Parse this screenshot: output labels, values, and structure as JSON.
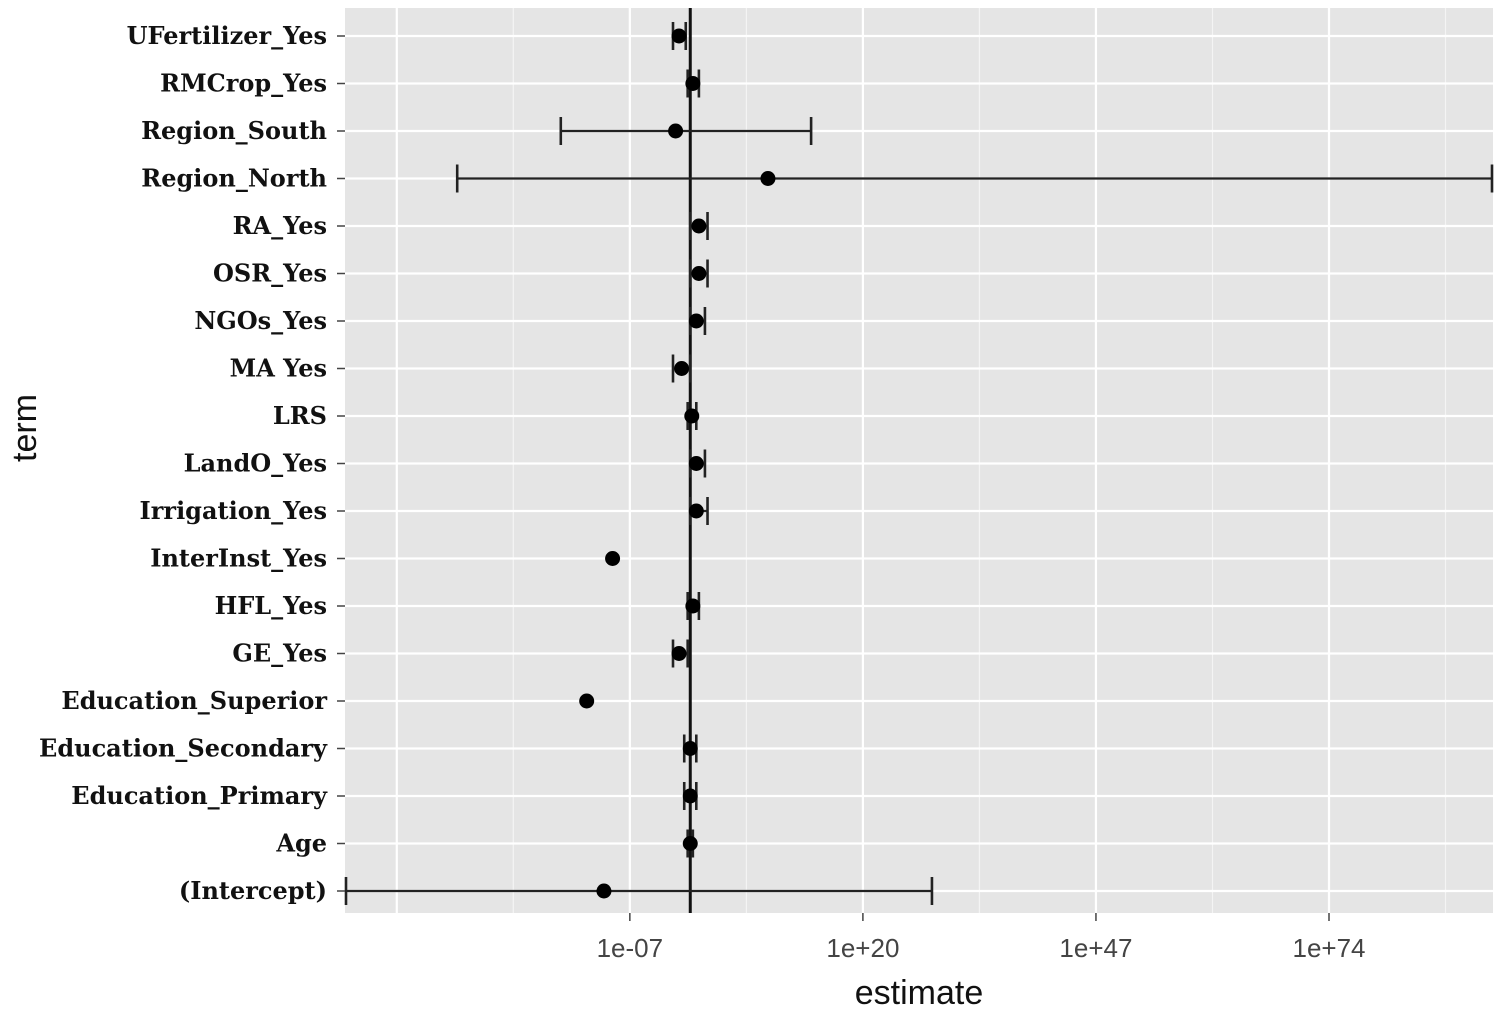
{
  "chart_data": {
    "type": "scatter",
    "subtype": "coefficient-plot-with-error-bars",
    "xlabel": "estimate",
    "ylabel": "term",
    "x_scale": "log10",
    "xlim": [
      1e-40,
      1e+93
    ],
    "x_ticks": [
      {
        "label": "1e-07",
        "value": 1e-07
      },
      {
        "label": "1e+20",
        "value": 1e+20
      },
      {
        "label": "1e+47",
        "value": 1e+47
      },
      {
        "label": "1e+74",
        "value": 1e+74
      }
    ],
    "reference_line_x": 1,
    "grid": true,
    "terms": [
      {
        "name": "UFertilizer_Yes",
        "estimate": 0.05,
        "low": 0.01,
        "high": 0.3
      },
      {
        "name": "RMCrop_Yes",
        "estimate": 2,
        "low": 0.5,
        "high": 10
      },
      {
        "name": "Region_South",
        "estimate": 0.02,
        "low": 1e-15,
        "high": 100000000000000.0
      },
      {
        "name": "Region_North",
        "estimate": 1000000000.0,
        "low": 1e-27,
        "high": 1e+93
      },
      {
        "name": "RA_Yes",
        "estimate": 10,
        "low": 1,
        "high": 100
      },
      {
        "name": "OSR_Yes",
        "estimate": 10,
        "low": 1,
        "high": 100
      },
      {
        "name": "NGOs_Yes",
        "estimate": 5,
        "low": 1,
        "high": 50
      },
      {
        "name": "MA  Yes",
        "estimate": 0.1,
        "low": 0.01,
        "high": 1
      },
      {
        "name": "LRS",
        "estimate": 1.5,
        "low": 0.5,
        "high": 5
      },
      {
        "name": "LandO_Yes",
        "estimate": 5,
        "low": 1,
        "high": 50
      },
      {
        "name": "Irrigation_Yes",
        "estimate": 5,
        "low": 1,
        "high": 100
      },
      {
        "name": "InterInst_Yes",
        "estimate": 1e-09,
        "low": 1e-09,
        "high": 1e-09
      },
      {
        "name": "HFL_Yes",
        "estimate": 2,
        "low": 0.5,
        "high": 10
      },
      {
        "name": "GE_Yes",
        "estimate": 0.05,
        "low": 0.01,
        "high": 0.5
      },
      {
        "name": "Education_Superior",
        "estimate": 1e-12,
        "low": 1e-12,
        "high": 1e-12
      },
      {
        "name": "Education_Secondary",
        "estimate": 1,
        "low": 0.2,
        "high": 5
      },
      {
        "name": "Education_Primary",
        "estimate": 1,
        "low": 0.2,
        "high": 5
      },
      {
        "name": "Age",
        "estimate": 1,
        "low": 0.5,
        "high": 2
      },
      {
        "name": "(Intercept)",
        "estimate": 1e-10,
        "low": 1e-40,
        "high": 1e+28
      }
    ]
  }
}
